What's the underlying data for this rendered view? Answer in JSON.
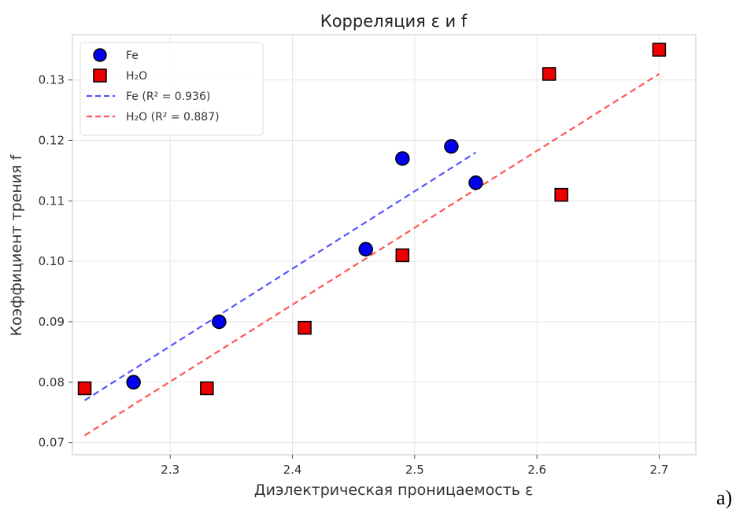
{
  "chart_data": {
    "type": "scatter",
    "title": "Корреляция ε и f",
    "xlabel": "Диэлектрическая проницаемость ε",
    "ylabel": "Коэффициент трения f",
    "xlim": [
      2.22,
      2.73
    ],
    "ylim": [
      0.068,
      0.1375
    ],
    "xticks": [
      2.3,
      2.4,
      2.5,
      2.6,
      2.7
    ],
    "yticks": [
      0.07,
      0.08,
      0.09,
      0.1,
      0.11,
      0.12,
      0.13
    ],
    "xtick_labels": [
      "2.3",
      "2.4",
      "2.5",
      "2.6",
      "2.7"
    ],
    "ytick_labels": [
      "0.07",
      "0.08",
      "0.09",
      "0.10",
      "0.11",
      "0.12",
      "0.13"
    ],
    "grid": true,
    "legend_position": "top-left",
    "series": [
      {
        "name": "Fe",
        "marker": "circle",
        "color": "#0000ee",
        "x": [
          2.34,
          2.27,
          2.46,
          2.49,
          2.53,
          2.55
        ],
        "y": [
          0.09,
          0.08,
          0.102,
          0.117,
          0.119,
          0.113
        ]
      },
      {
        "name": "H₂O",
        "marker": "square",
        "color": "#ee0000",
        "x": [
          2.23,
          2.33,
          2.41,
          2.49,
          2.61,
          2.62,
          2.7
        ],
        "y": [
          0.079,
          0.079,
          0.089,
          0.101,
          0.131,
          0.111,
          0.135
        ]
      }
    ],
    "fits": [
      {
        "name": "Fe (R² = 0.936)",
        "color": "#5555ff",
        "x": [
          2.23,
          2.55
        ],
        "y": [
          0.077,
          0.118
        ]
      },
      {
        "name": "H₂O (R² = 0.887)",
        "color": "#ff5555",
        "x": [
          2.23,
          2.7
        ],
        "y": [
          0.0712,
          0.131
        ]
      }
    ]
  },
  "caption": "a)"
}
